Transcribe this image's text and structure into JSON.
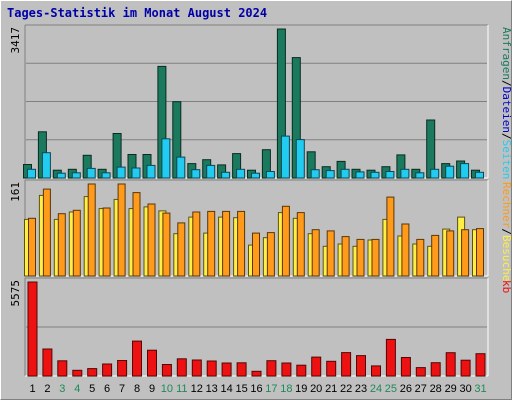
{
  "title": "Tages-Statistik im Monat August 2024",
  "colors": {
    "panel_bg": "#c0c0c0",
    "grid": "#808080",
    "anfragen": "#1b7a5e",
    "seiten": "#21ccf0",
    "besuche": "#ff9a1a",
    "rechner": "#ffee44",
    "kb": "#ee1111",
    "weekday": "#000000",
    "weekend": "#1e8a5a"
  },
  "chart_data": [
    {
      "type": "bar",
      "name": "panel-top",
      "ylabel_max": "3417",
      "ylim": [
        0,
        3417
      ],
      "right_label": {
        "parts": [
          {
            "text": "Anfragen",
            "color": "#1b7a5e"
          },
          {
            "text": "/",
            "color": "#000000"
          },
          {
            "text": "Dateien",
            "color": "#0000cc"
          },
          {
            "text": "/",
            "color": "#000000"
          },
          {
            "text": "Seiten",
            "color": "#21ccf0"
          }
        ]
      },
      "categories": [
        "1",
        "2",
        "3",
        "4",
        "5",
        "6",
        "7",
        "8",
        "9",
        "10",
        "11",
        "12",
        "13",
        "14",
        "15",
        "16",
        "17",
        "18",
        "19",
        "20",
        "21",
        "22",
        "23",
        "24",
        "25",
        "26",
        "27",
        "28",
        "29",
        "30",
        "31"
      ],
      "series": [
        {
          "name": "Anfragen",
          "color": "#1b7a5e",
          "values": [
            310,
            1060,
            180,
            200,
            520,
            200,
            1020,
            540,
            540,
            2560,
            1750,
            330,
            420,
            300,
            560,
            180,
            650,
            3417,
            2760,
            600,
            260,
            380,
            200,
            180,
            260,
            530,
            200,
            1330,
            330,
            390,
            180
          ]
        },
        {
          "name": "Seiten",
          "color": "#21ccf0",
          "values": [
            200,
            580,
            110,
            120,
            220,
            120,
            250,
            230,
            290,
            900,
            480,
            190,
            290,
            130,
            200,
            110,
            150,
            960,
            880,
            190,
            170,
            200,
            140,
            130,
            150,
            200,
            120,
            200,
            270,
            330,
            130
          ]
        }
      ]
    },
    {
      "type": "bar",
      "name": "panel-middle",
      "ylabel_max": "161",
      "ylim": [
        0,
        161
      ],
      "right_label": {
        "parts": [
          {
            "text": "Rechner",
            "color": "#ff9a1a"
          },
          {
            "text": "/",
            "color": "#000000"
          },
          {
            "text": "Besuche",
            "color": "#ffee44"
          }
        ]
      },
      "categories": [
        "1",
        "2",
        "3",
        "4",
        "5",
        "6",
        "7",
        "8",
        "9",
        "10",
        "11",
        "12",
        "13",
        "14",
        "15",
        "16",
        "17",
        "18",
        "19",
        "20",
        "21",
        "22",
        "23",
        "24",
        "25",
        "26",
        "27",
        "28",
        "29",
        "30",
        "31"
      ],
      "series": [
        {
          "name": "Rechner",
          "color": "#ffee44",
          "values": [
            99,
            141,
            99,
            112,
            139,
            118,
            134,
            118,
            121,
            114,
            74,
            103,
            75,
            103,
            102,
            54,
            67,
            111,
            101,
            74,
            52,
            56,
            52,
            63,
            99,
            70,
            56,
            52,
            82,
            103,
            81
          ]
        },
        {
          "name": "Besuche",
          "color": "#ff9a1a",
          "values": [
            101,
            152,
            109,
            115,
            161,
            119,
            161,
            146,
            126,
            110,
            93,
            112,
            113,
            113,
            113,
            75,
            76,
            122,
            111,
            81,
            79,
            69,
            64,
            64,
            138,
            91,
            64,
            71,
            79,
            81,
            83
          ]
        }
      ]
    },
    {
      "type": "bar",
      "name": "panel-bottom",
      "ylabel_max": "5575",
      "ylim": [
        0,
        5575
      ],
      "right_label": {
        "parts": [
          {
            "text": "kb",
            "color": "#ee1111"
          }
        ]
      },
      "categories": [
        "1",
        "2",
        "3",
        "4",
        "5",
        "6",
        "7",
        "8",
        "9",
        "10",
        "11",
        "12",
        "13",
        "14",
        "15",
        "16",
        "17",
        "18",
        "19",
        "20",
        "21",
        "22",
        "23",
        "24",
        "25",
        "26",
        "27",
        "28",
        "29",
        "30",
        "31"
      ],
      "series": [
        {
          "name": "kb",
          "color": "#ee1111",
          "values": [
            5575,
            1600,
            900,
            340,
            440,
            710,
            920,
            2070,
            1530,
            680,
            1020,
            950,
            890,
            770,
            780,
            280,
            910,
            770,
            640,
            1120,
            870,
            1390,
            1210,
            600,
            2170,
            1100,
            500,
            790,
            1380,
            940,
            1320
          ]
        }
      ]
    }
  ],
  "day_labels": [
    "1",
    "2",
    "3",
    "4",
    "5",
    "6",
    "7",
    "8",
    "9",
    "10",
    "11",
    "12",
    "13",
    "14",
    "15",
    "16",
    "17",
    "18",
    "19",
    "20",
    "21",
    "22",
    "23",
    "24",
    "25",
    "26",
    "27",
    "28",
    "29",
    "30",
    "31"
  ],
  "weekend_days": [
    3,
    4,
    10,
    11,
    17,
    18,
    24,
    25,
    31
  ]
}
